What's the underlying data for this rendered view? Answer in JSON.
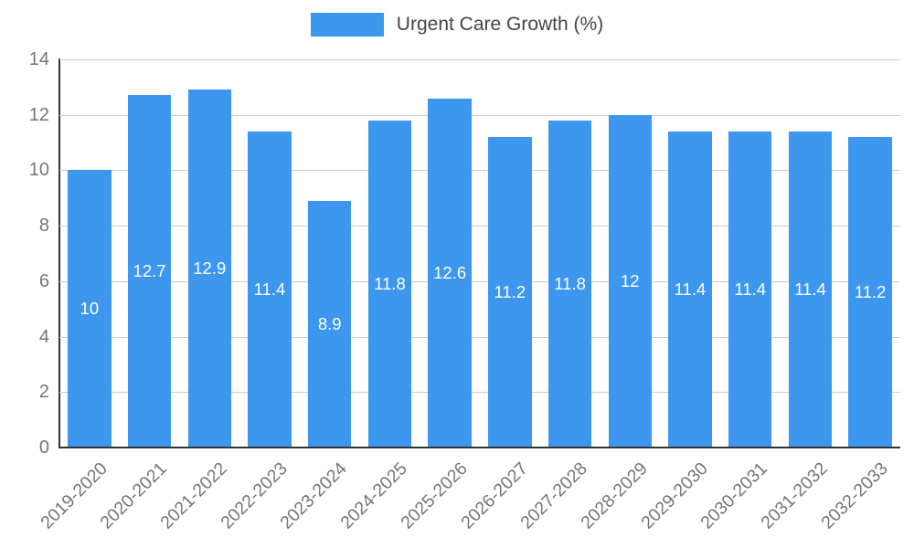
{
  "legend": {
    "label": "Urgent Care Growth (%)"
  },
  "chart_data": {
    "type": "bar",
    "title": "Urgent Care Growth (%)",
    "categories": [
      "2019-2020",
      "2020-2021",
      "2021-2022",
      "2022-2023",
      "2023-2024",
      "2024-2025",
      "2025-2026",
      "2026-2027",
      "2027-2028",
      "2028-2029",
      "2029-2030",
      "2030-2031",
      "2031-2032",
      "2032-2033"
    ],
    "values": [
      10,
      12.7,
      12.9,
      11.4,
      8.9,
      11.8,
      12.6,
      11.2,
      11.8,
      12,
      11.4,
      11.4,
      11.4,
      11.2
    ],
    "xlabel": "",
    "ylabel": "",
    "ylim": [
      0,
      14
    ],
    "yticks": [
      0,
      2,
      4,
      6,
      8,
      10,
      12,
      14
    ],
    "grid": true,
    "legend_position": "top",
    "bar_color": "#3d97ee",
    "value_label_color": "#ffffff",
    "grid_color": "#cccccc",
    "axis_color": "#333333",
    "tick_text_color": "#757575"
  }
}
